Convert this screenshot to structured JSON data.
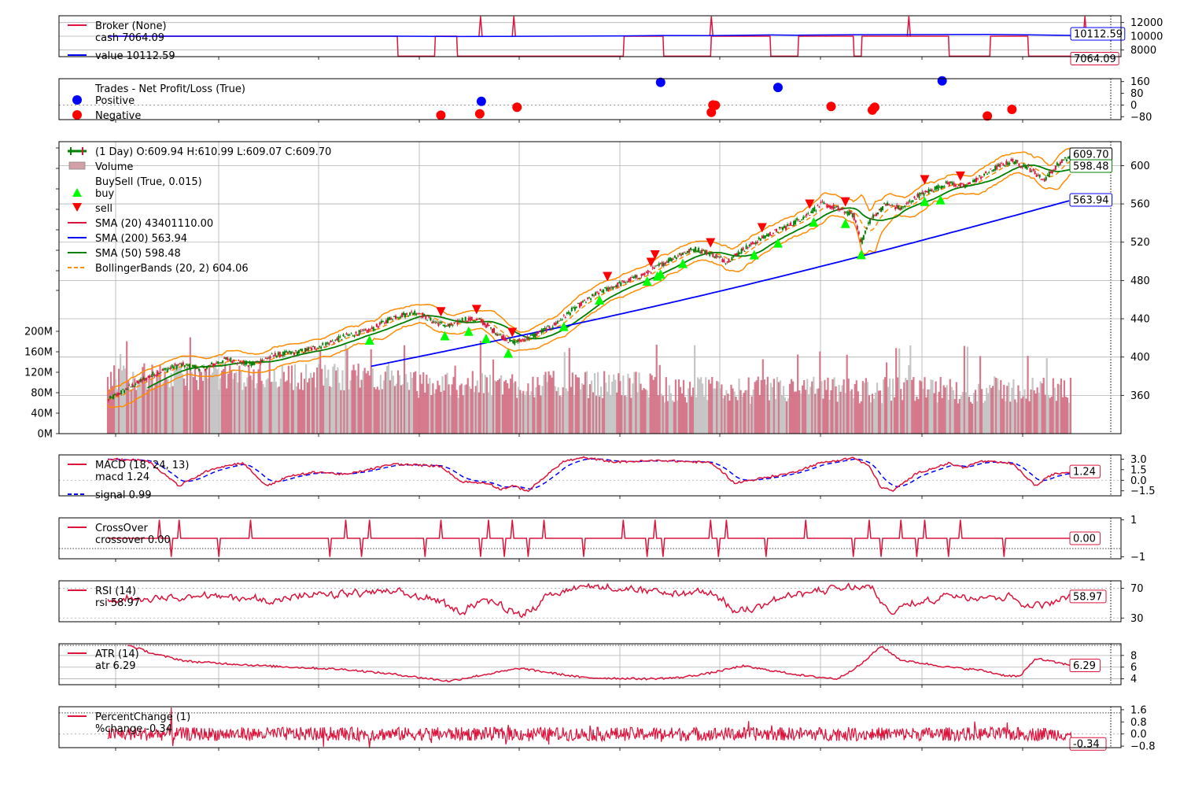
{
  "chart_data": [
    {
      "type": "line",
      "panel": "broker",
      "legend": [
        "Broker (None)",
        "cash 7064.09",
        "value 10112.59"
      ],
      "yticks": [
        8000,
        10000,
        12000
      ],
      "ylim": [
        7000,
        13000
      ],
      "series": [
        {
          "name": "cash",
          "color": "#dc143c",
          "x": [
            0,
            365,
            366,
            412,
            413,
            440,
            441,
            650,
            651,
            700,
            701,
            760,
            761,
            835,
            836,
            870,
            871,
            940,
            941,
            950,
            951,
            1060,
            1061,
            1112,
            1113,
            1160,
            1161,
            1215
          ],
          "values": [
            10000,
            10000,
            7064,
            7064,
            10000,
            10000,
            7064,
            7064,
            10000,
            10000,
            7064,
            7064,
            10000,
            10000,
            7064,
            7064,
            10000,
            10000,
            7064,
            7064,
            10000,
            10000,
            7064,
            7064,
            10000,
            10000,
            7064,
            7064
          ]
        },
        {
          "name": "value",
          "color": "#0000ff",
          "x": [
            0,
            365,
            440,
            650,
            700,
            760,
            835,
            870,
            940,
            1060,
            1112,
            1160,
            1215
          ],
          "values": [
            10000,
            10000,
            9950,
            10050,
            10100,
            10080,
            10180,
            10150,
            10220,
            10240,
            10260,
            10200,
            10112.59
          ]
        }
      ],
      "spikes_x": [
        470,
        512,
        761,
        1010,
        1232
      ],
      "end_labels": [
        "10112.59",
        "7064.09"
      ]
    },
    {
      "type": "scatter",
      "panel": "trades",
      "legend": [
        "Trades - Net Profit/Loss (True)",
        "Positive",
        "Negative"
      ],
      "yticks": [
        -80,
        0,
        80,
        160
      ],
      "ylim": [
        -100,
        180
      ],
      "positive": {
        "x": [
          471,
          697,
          845,
          1052
        ],
        "values": [
          25,
          155,
          120,
          165
        ]
      },
      "negative": {
        "x": [
          420,
          469,
          516,
          761,
          763,
          766,
          912,
          964,
          967,
          1109,
          1140
        ],
        "values": [
          -70,
          -60,
          -15,
          -50,
          0,
          -2,
          -10,
          -35,
          -15,
          -75,
          -30
        ]
      }
    },
    {
      "type": "candlestick",
      "panel": "price",
      "legend": [
        " (1 Day) O:609.94 H:610.99 L:609.07 C:609.70",
        "Volume",
        "BuySell (True, 0.015)",
        "buy",
        "sell",
        "SMA (20) 43401110.00",
        "SMA (200) 563.94",
        "SMA (50) 598.48",
        "BollingerBands (20, 2) 604.06"
      ],
      "yticks": [
        360,
        400,
        440,
        480,
        520,
        560,
        600
      ],
      "ylim": [
        320,
        625
      ],
      "vol_ticks": [
        "0M",
        "40M",
        "80M",
        "120M",
        "160M",
        "200M"
      ],
      "anchors": {
        "x": [
          0,
          30,
          60,
          90,
          120,
          150,
          180,
          210,
          240,
          270,
          300,
          330,
          360,
          390,
          410,
          430,
          450,
          470,
          490,
          510,
          530,
          560,
          590,
          620,
          650,
          680,
          700,
          720,
          740,
          760,
          780,
          800,
          830,
          860,
          880,
          900,
          920,
          940,
          950,
          960,
          980,
          1000,
          1020,
          1040,
          1060,
          1080,
          1100,
          1120,
          1140,
          1160,
          1180,
          1200,
          1215
        ],
        "values": [
          355,
          370,
          383,
          392,
          388,
          398,
          392,
          402,
          405,
          412,
          422,
          428,
          442,
          447,
          437,
          432,
          440,
          438,
          425,
          415,
          420,
          432,
          452,
          468,
          478,
          488,
          498,
          507,
          513,
          508,
          500,
          512,
          527,
          538,
          548,
          560,
          555,
          548,
          520,
          542,
          560,
          555,
          568,
          575,
          582,
          578,
          588,
          598,
          605,
          598,
          585,
          603,
          609.7
        ]
      },
      "sma20": {
        "label": "SMA (20) 43401110.00",
        "end_value": "43401110.00"
      },
      "sma200": {
        "x_start": 330,
        "end_value": "563.94"
      },
      "sma50": {
        "end_value": "598.48"
      },
      "buy_x": [
        330,
        425,
        455,
        477,
        505,
        575,
        620,
        680,
        693,
        697,
        725,
        815,
        845,
        890,
        930,
        950,
        1030,
        1050
      ],
      "sell_x": [
        420,
        465,
        510,
        630,
        685,
        690,
        760,
        825,
        885,
        930,
        1030,
        1075
      ],
      "end_labels": [
        "609.70",
        "598.48",
        "563.94"
      ]
    },
    {
      "type": "line",
      "panel": "macd",
      "legend": [
        "MACD (18, 24, 13)",
        "macd 1.24",
        "signal 0.99"
      ],
      "yticks": [
        -1.5,
        0.0,
        1.5,
        3.0
      ],
      "yticklabels": [
        "−1.5",
        "0.0",
        "1.5",
        "3.0"
      ],
      "ylim": [
        -2.2,
        3.6
      ],
      "end_labels": [
        "1.24"
      ]
    },
    {
      "type": "line",
      "panel": "crossover",
      "legend": [
        "CrossOver",
        "crossover 0.00"
      ],
      "yticks": [
        -1,
        1
      ],
      "yticklabels": [
        "−1",
        "1"
      ],
      "ylim": [
        -1.1,
        1.1
      ],
      "end_labels": [
        "0.00"
      ]
    },
    {
      "type": "line",
      "panel": "rsi",
      "legend": [
        "RSI (14)",
        "rsi 58.97"
      ],
      "yticks": [
        30,
        70
      ],
      "ylim": [
        25,
        80
      ],
      "end_labels": [
        "58.97"
      ]
    },
    {
      "type": "line",
      "panel": "atr",
      "legend": [
        "ATR (14)",
        "atr 6.29"
      ],
      "yticks": [
        4,
        6,
        8
      ],
      "ylim": [
        3,
        10
      ],
      "end_labels": [
        "6.29"
      ]
    },
    {
      "type": "line",
      "panel": "pct",
      "legend": [
        "PercentChange (1)",
        "%change -0.34"
      ],
      "yticks": [
        -0.8,
        0.0,
        0.8,
        1.6
      ],
      "yticklabels": [
        "−0.8",
        "0.0",
        "0.8",
        "1.6"
      ],
      "ylim": [
        -0.9,
        1.8
      ],
      "end_labels": [
        "-0.34"
      ]
    }
  ]
}
